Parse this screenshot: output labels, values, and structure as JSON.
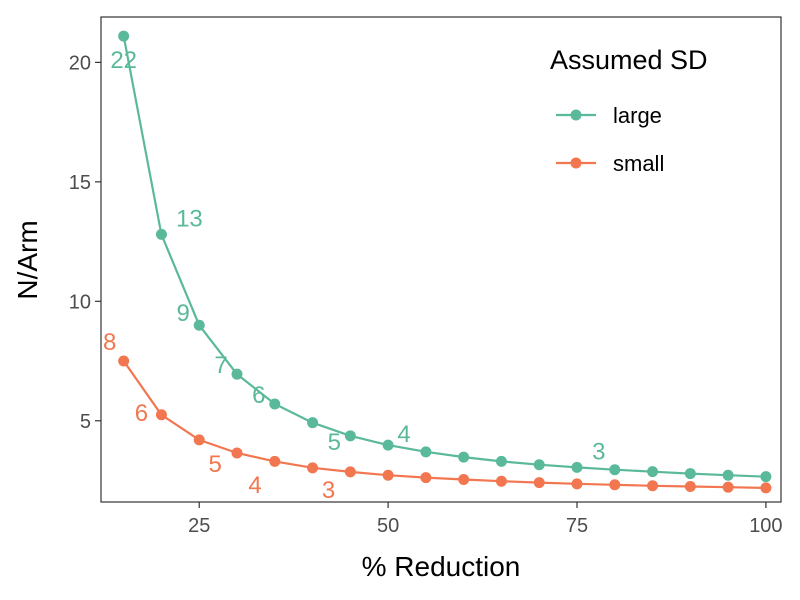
{
  "chart_data": {
    "type": "line",
    "xlabel": "% Reduction",
    "ylabel": "N/Arm",
    "xlim": [
      12,
      102
    ],
    "ylim": [
      1.6,
      21.9
    ],
    "x_ticks": [
      25,
      50,
      75,
      100
    ],
    "y_ticks": [
      5,
      10,
      15,
      20
    ],
    "grid": false,
    "legend": {
      "title": "Assumed SD",
      "placement": "top-right",
      "entries": [
        "large",
        "small"
      ]
    },
    "x": [
      15,
      20,
      25,
      30,
      35,
      40,
      45,
      50,
      55,
      60,
      65,
      70,
      75,
      80,
      85,
      90,
      95,
      100
    ],
    "series": [
      {
        "name": "large",
        "color": "#5bb99b",
        "values": [
          21.1,
          12.8,
          9.0,
          6.95,
          5.7,
          4.92,
          4.37,
          3.98,
          3.7,
          3.48,
          3.3,
          3.16,
          3.05,
          2.95,
          2.87,
          2.79,
          2.72,
          2.66
        ],
        "labels": [
          {
            "x": 15,
            "y": 21.1,
            "text": "22",
            "dx": 0,
            "dy": 32
          },
          {
            "x": 20,
            "y": 12.8,
            "text": "13",
            "dx": 28,
            "dy": -8
          },
          {
            "x": 25,
            "y": 9.0,
            "text": "9",
            "dx": -16,
            "dy": -4
          },
          {
            "x": 30,
            "y": 6.95,
            "text": "7",
            "dx": -16,
            "dy": -1
          },
          {
            "x": 35,
            "y": 5.7,
            "text": "6",
            "dx": -16,
            "dy": -1
          },
          {
            "x": 45,
            "y": 4.37,
            "text": "5",
            "dx": -16,
            "dy": 14
          },
          {
            "x": 50,
            "y": 3.98,
            "text": "4",
            "dx": 16,
            "dy": -3
          },
          {
            "x": 80,
            "y": 2.95,
            "text": "3",
            "dx": -16,
            "dy": -10
          }
        ]
      },
      {
        "name": "small",
        "color": "#f2764f",
        "values": [
          7.5,
          5.25,
          4.2,
          3.65,
          3.3,
          3.03,
          2.86,
          2.72,
          2.62,
          2.54,
          2.47,
          2.41,
          2.36,
          2.32,
          2.28,
          2.25,
          2.22,
          2.19
        ],
        "labels": [
          {
            "x": 15,
            "y": 7.5,
            "text": "8",
            "dx": -14,
            "dy": -11
          },
          {
            "x": 20,
            "y": 5.25,
            "text": "6",
            "dx": -20,
            "dy": 6
          },
          {
            "x": 25,
            "y": 4.2,
            "text": "5",
            "dx": 16,
            "dy": 32
          },
          {
            "x": 30,
            "y": 3.65,
            "text": "4",
            "dx": 18,
            "dy": 40
          },
          {
            "x": 40,
            "y": 3.03,
            "text": "3",
            "dx": 16,
            "dy": 30
          }
        ]
      }
    ]
  }
}
